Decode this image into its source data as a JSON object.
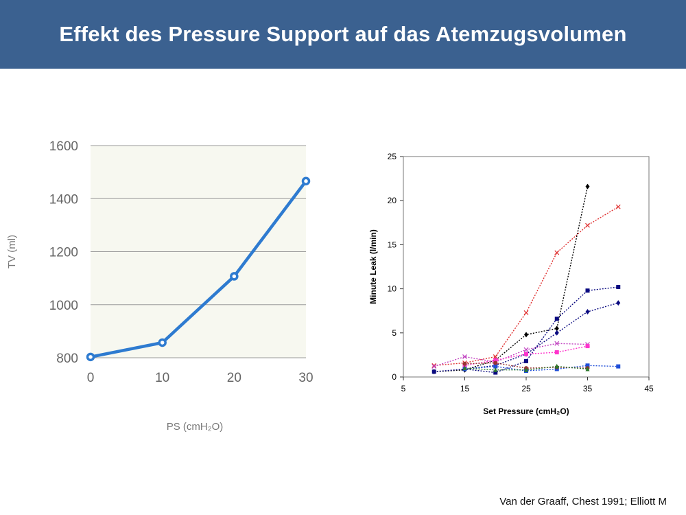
{
  "slide": {
    "title": "Effekt des Pressure Support auf das Atemzugsvolumen",
    "citation": "Van der Graaff, Chest 1991; Elliott M"
  },
  "colors": {
    "header_bg": "#3b6190",
    "left_line": "#2e7bd0",
    "left_plot_bg": "#f7f8f0"
  },
  "chart_data": [
    {
      "type": "line",
      "xlabel": "PS (cmH₂O)",
      "ylabel": "TV (ml)",
      "x": [
        0,
        10,
        20,
        30
      ],
      "y": [
        803,
        857,
        1107,
        1466
      ],
      "xlim": [
        0,
        30
      ],
      "ylim": [
        800,
        1600
      ],
      "xticks": [
        "0",
        "10",
        "20",
        "30"
      ],
      "yticks": [
        "800",
        "1000",
        "1200",
        "1400",
        "1600"
      ],
      "grid": true
    },
    {
      "type": "scatter",
      "xlabel": "Set Pressure (cmH₂O)",
      "ylabel": "Minute Leak (l/min)",
      "xlim": [
        5,
        45
      ],
      "ylim": [
        0,
        25
      ],
      "xticks": [
        "5",
        "15",
        "25",
        "35",
        "45"
      ],
      "yticks": [
        "0",
        "5",
        "10",
        "15",
        "20",
        "25"
      ],
      "grid": false,
      "series": [
        {
          "color": "#000000",
          "marker": "diamond",
          "x": [
            10,
            15,
            20,
            25,
            30,
            35
          ],
          "y": [
            0.6,
            0.8,
            1.9,
            4.8,
            5.5,
            21.6
          ]
        },
        {
          "color": "#e03030",
          "marker": "x",
          "x": [
            10,
            15,
            20,
            25,
            30,
            35,
            40
          ],
          "y": [
            1.3,
            1.6,
            2.3,
            7.3,
            14.1,
            17.2,
            19.3
          ]
        },
        {
          "color": "#0a0a80",
          "marker": "square",
          "x": [
            10,
            15,
            20,
            25,
            30,
            35,
            40
          ],
          "y": [
            0.6,
            0.9,
            0.5,
            1.8,
            6.6,
            9.8,
            10.2
          ]
        },
        {
          "color": "#0a0a80",
          "marker": "diamond",
          "x": [
            15,
            20,
            25,
            30,
            35,
            40
          ],
          "y": [
            0.9,
            1.3,
            2.6,
            5.0,
            7.4,
            8.4
          ]
        },
        {
          "color": "#c040c0",
          "marker": "x",
          "x": [
            10,
            15,
            20,
            25,
            30,
            35
          ],
          "y": [
            1.2,
            2.3,
            1.7,
            3.1,
            3.8,
            3.7
          ]
        },
        {
          "color": "#ff33cc",
          "marker": "square",
          "x": [
            15,
            20,
            25,
            30,
            35
          ],
          "y": [
            1.3,
            1.9,
            2.6,
            2.8,
            3.5
          ]
        },
        {
          "color": "#1f4ed8",
          "marker": "square",
          "x": [
            15,
            20,
            25,
            30,
            35,
            40
          ],
          "y": [
            0.9,
            1.2,
            0.7,
            0.9,
            1.3,
            1.2
          ]
        },
        {
          "color": "#993333",
          "marker": "circle",
          "x": [
            15,
            20,
            25,
            30,
            35
          ],
          "y": [
            1.5,
            1.6,
            1.0,
            1.1,
            1.0
          ]
        },
        {
          "color": "#2d7a2d",
          "marker": "triangle",
          "x": [
            15,
            20,
            25,
            30,
            35
          ],
          "y": [
            1.0,
            0.8,
            0.8,
            1.2,
            0.9
          ]
        }
      ]
    }
  ]
}
